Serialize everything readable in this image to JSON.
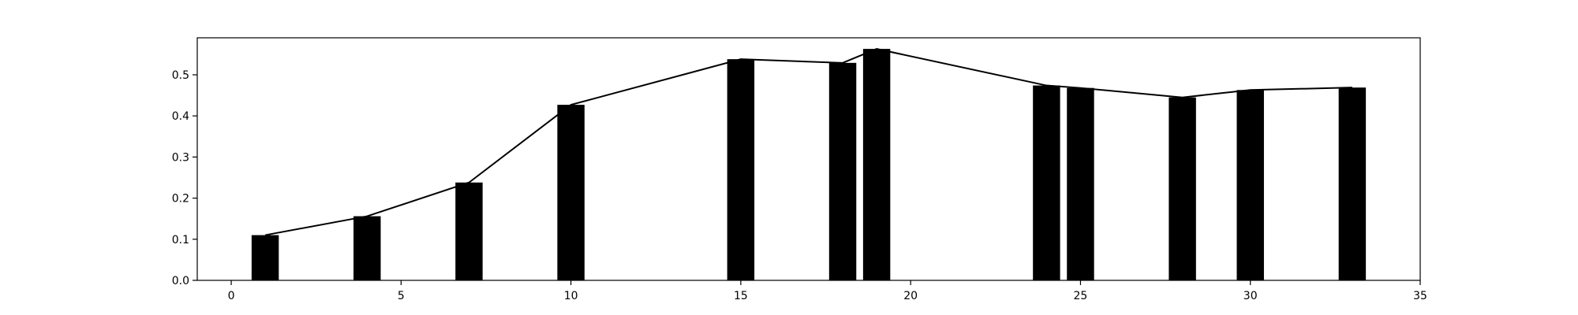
{
  "chart_data": {
    "type": "bar",
    "title": "",
    "xlabel": "",
    "ylabel": "",
    "xlim": [
      -1,
      35
    ],
    "ylim": [
      0,
      0.59
    ],
    "x_ticks": [
      0,
      5,
      10,
      15,
      20,
      25,
      30,
      35
    ],
    "y_ticks": [
      0.0,
      0.1,
      0.2,
      0.3,
      0.4,
      0.5
    ],
    "x_tick_labels": [
      "0",
      "5",
      "10",
      "15",
      "20",
      "25",
      "30",
      "35"
    ],
    "y_tick_labels": [
      "0.0",
      "0.1",
      "0.2",
      "0.3",
      "0.4",
      "0.5"
    ],
    "grid": false,
    "legend": false,
    "bar_width": 0.8,
    "series": [
      {
        "type": "bar",
        "color": "#000000",
        "x": [
          1,
          4,
          7,
          10,
          15,
          18,
          19,
          24,
          25,
          28,
          30,
          33
        ],
        "values": [
          0.11,
          0.156,
          0.238,
          0.427,
          0.538,
          0.529,
          0.563,
          0.474,
          0.468,
          0.445,
          0.463,
          0.469
        ]
      },
      {
        "type": "line",
        "color": "#000000",
        "x": [
          1,
          4,
          7,
          10,
          15,
          18,
          19,
          24,
          25,
          28,
          30,
          33
        ],
        "values": [
          0.11,
          0.156,
          0.238,
          0.427,
          0.538,
          0.529,
          0.563,
          0.474,
          0.468,
          0.445,
          0.463,
          0.469
        ]
      }
    ]
  }
}
